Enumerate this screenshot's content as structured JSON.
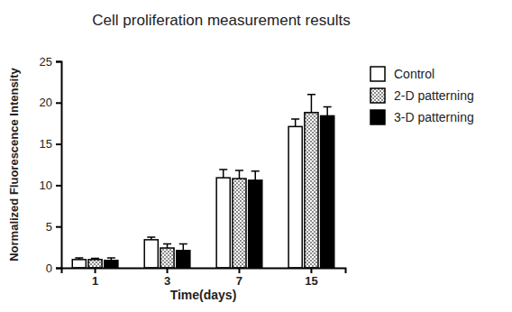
{
  "chart_data": {
    "type": "bar",
    "title": "Cell proliferation measurement results",
    "x_label": "Time(days)",
    "y_label": "Normalized Fluorescence Intensity",
    "categories": [
      "1",
      "3",
      "7",
      "15"
    ],
    "series": [
      {
        "name": "Control",
        "color": "#ffffff",
        "values": [
          1.0,
          3.4,
          10.9,
          17.1
        ],
        "errors": [
          0.2,
          0.3,
          1.0,
          0.9
        ]
      },
      {
        "name": "2-D patterning",
        "color": "#8c8c8c",
        "values": [
          1.0,
          2.4,
          10.8,
          18.8
        ],
        "errors": [
          0.15,
          0.5,
          1.0,
          2.2
        ]
      },
      {
        "name": "3-D patterning",
        "color": "#000000",
        "values": [
          0.9,
          2.1,
          10.6,
          18.4
        ],
        "errors": [
          0.3,
          0.8,
          1.1,
          1.1
        ]
      }
    ],
    "ylim": [
      0,
      25
    ],
    "yticks": [
      0,
      5,
      10,
      15,
      20,
      25
    ],
    "grid": false,
    "legend": "right"
  }
}
